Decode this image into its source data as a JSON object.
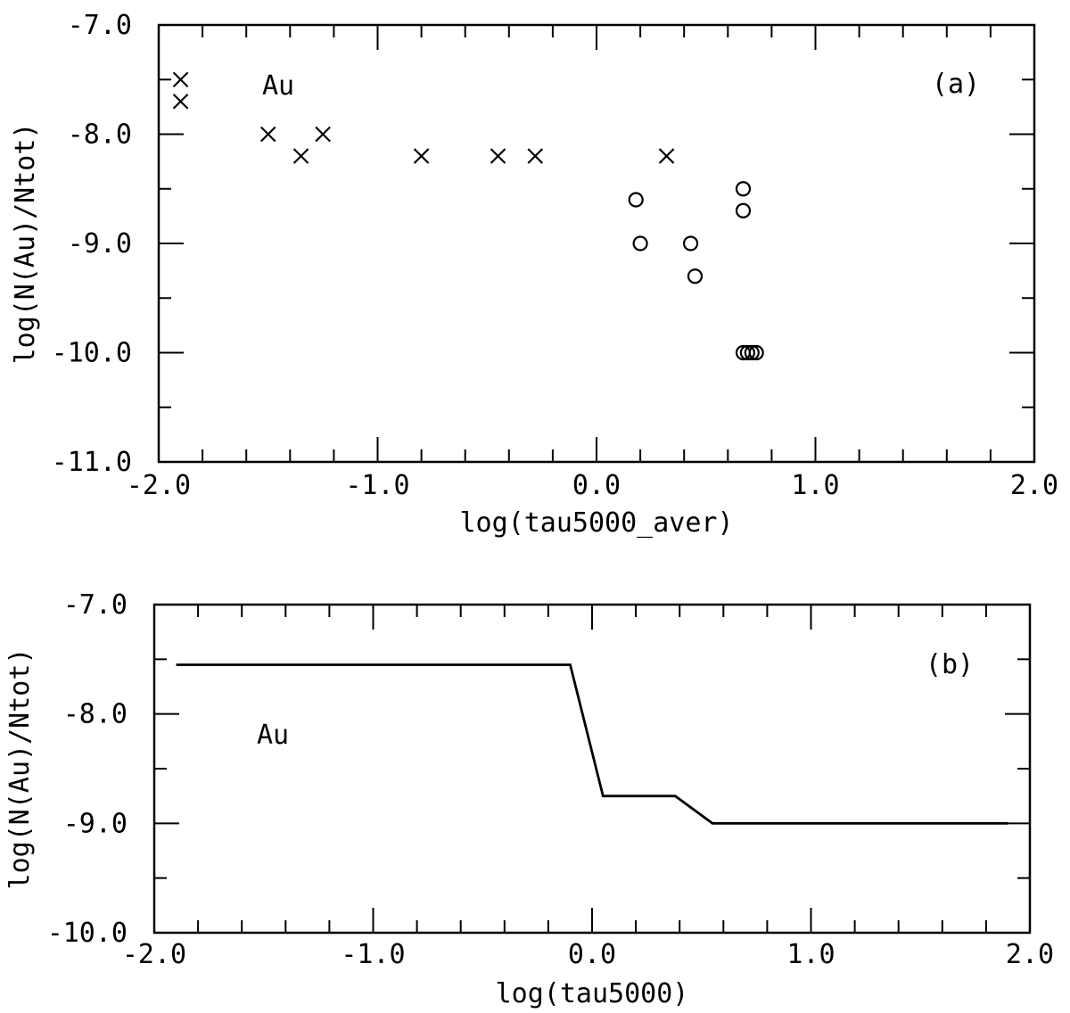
{
  "chart_data": [
    {
      "id": "a",
      "type": "scatter",
      "panel_label": "(a)",
      "annotation": "Au",
      "xlabel": "log(tau5000_aver)",
      "ylabel": "log(N(Au)/Ntot)",
      "xlim": [
        -2.0,
        2.0
      ],
      "ylim": [
        -11.0,
        -7.0
      ],
      "xticks_major": [
        -2.0,
        -1.0,
        0.0,
        1.0,
        2.0
      ],
      "xtick_labels": [
        "-2.0",
        "-1.0",
        "0.0",
        "1.0",
        "2.0"
      ],
      "yticks_major": [
        -11.0,
        -10.0,
        -9.0,
        -8.0,
        -7.0
      ],
      "ytick_labels": [
        "-11.0",
        "-10.0",
        "-9.0",
        "-8.0",
        "-7.0"
      ],
      "grid": false,
      "series": [
        {
          "marker": "x",
          "points": [
            [
              -1.9,
              -7.5
            ],
            [
              -1.9,
              -7.7
            ],
            [
              -1.5,
              -8.0
            ],
            [
              -1.35,
              -8.2
            ],
            [
              -1.25,
              -8.0
            ],
            [
              -0.8,
              -8.2
            ],
            [
              -0.45,
              -8.2
            ],
            [
              -0.28,
              -8.2
            ],
            [
              0.32,
              -8.2
            ]
          ]
        },
        {
          "marker": "o",
          "points": [
            [
              0.18,
              -8.6
            ],
            [
              0.2,
              -9.0
            ],
            [
              0.43,
              -9.0
            ],
            [
              0.45,
              -9.3
            ],
            [
              0.67,
              -8.5
            ],
            [
              0.67,
              -8.7
            ],
            [
              0.67,
              -10.0
            ],
            [
              0.69,
              -10.0
            ],
            [
              0.71,
              -10.0
            ],
            [
              0.73,
              -10.0
            ]
          ]
        }
      ]
    },
    {
      "id": "b",
      "type": "line",
      "panel_label": "(b)",
      "annotation": "Au",
      "xlabel": "log(tau5000)",
      "ylabel": "log(N(Au)/Ntot)",
      "xlim": [
        -2.0,
        2.0
      ],
      "ylim": [
        -10.0,
        -7.0
      ],
      "xticks_major": [
        -2.0,
        -1.0,
        0.0,
        1.0,
        2.0
      ],
      "xtick_labels": [
        "-2.0",
        "-1.0",
        "0.0",
        "1.0",
        "2.0"
      ],
      "yticks_major": [
        -10.0,
        -9.0,
        -8.0,
        -7.0
      ],
      "ytick_labels": [
        "-10.0",
        "-9.0",
        "-8.0",
        "-7.0"
      ],
      "grid": false,
      "series": [
        {
          "points": [
            [
              -1.9,
              -7.55
            ],
            [
              -0.1,
              -7.55
            ],
            [
              0.05,
              -8.75
            ],
            [
              0.38,
              -8.75
            ],
            [
              0.55,
              -9.0
            ],
            [
              1.9,
              -9.0
            ]
          ]
        }
      ]
    }
  ]
}
